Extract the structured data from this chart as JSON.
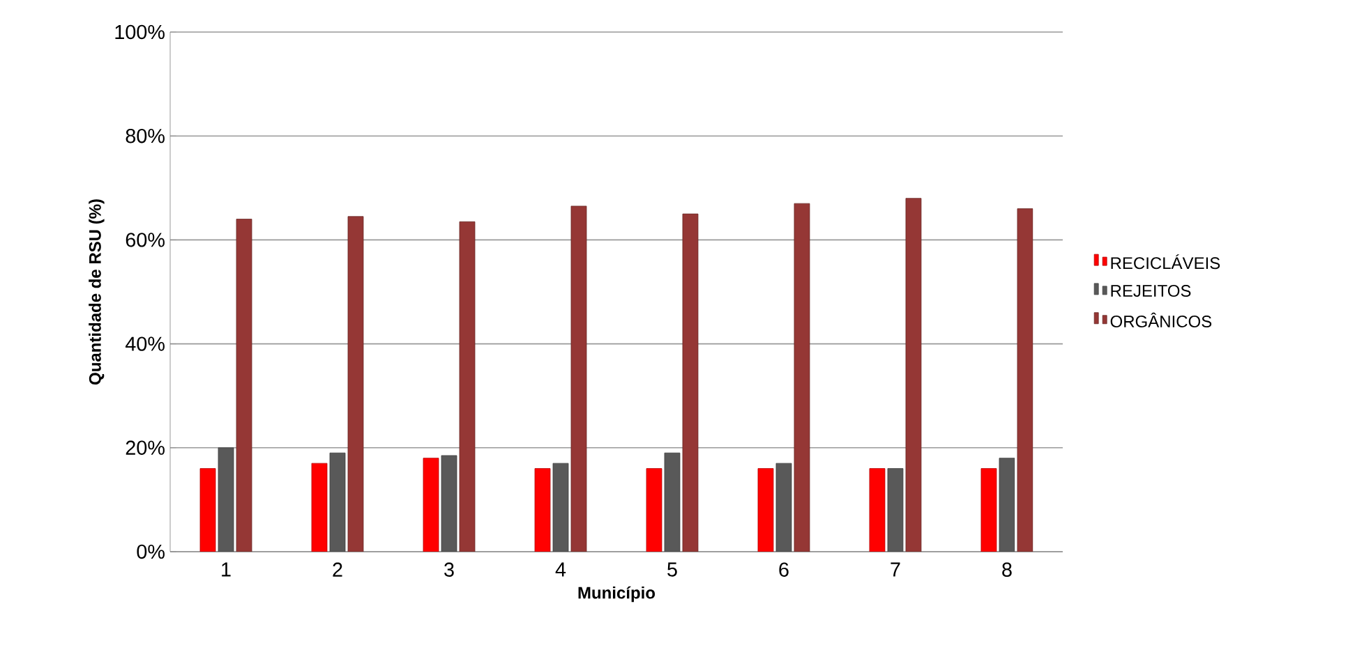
{
  "chart_data": {
    "type": "bar",
    "xlabel": "Município",
    "ylabel": "Quantidade de RSU (%)",
    "categories": [
      "1",
      "2",
      "3",
      "4",
      "5",
      "6",
      "7",
      "8"
    ],
    "series": [
      {
        "name": "RECICLÁVEIS",
        "color": "#ff0000",
        "values": [
          16,
          17,
          18,
          16,
          16,
          16,
          16,
          16
        ]
      },
      {
        "name": "REJEITOS",
        "color": "#595959",
        "values": [
          20,
          19,
          18.5,
          17,
          19,
          17,
          16,
          18
        ]
      },
      {
        "name": "ORGÂNICOS",
        "color": "#953735",
        "values": [
          64,
          64.5,
          63.5,
          66.5,
          65,
          67,
          68,
          66
        ]
      }
    ],
    "ylim": [
      0,
      100
    ],
    "yticks": [
      {
        "value": 0,
        "label": "0%"
      },
      {
        "value": 20,
        "label": "20%"
      },
      {
        "value": 40,
        "label": "40%"
      },
      {
        "value": 60,
        "label": "60%"
      },
      {
        "value": 80,
        "label": "80%"
      },
      {
        "value": 100,
        "label": "100%"
      }
    ],
    "grid": "y",
    "legend": "right"
  }
}
